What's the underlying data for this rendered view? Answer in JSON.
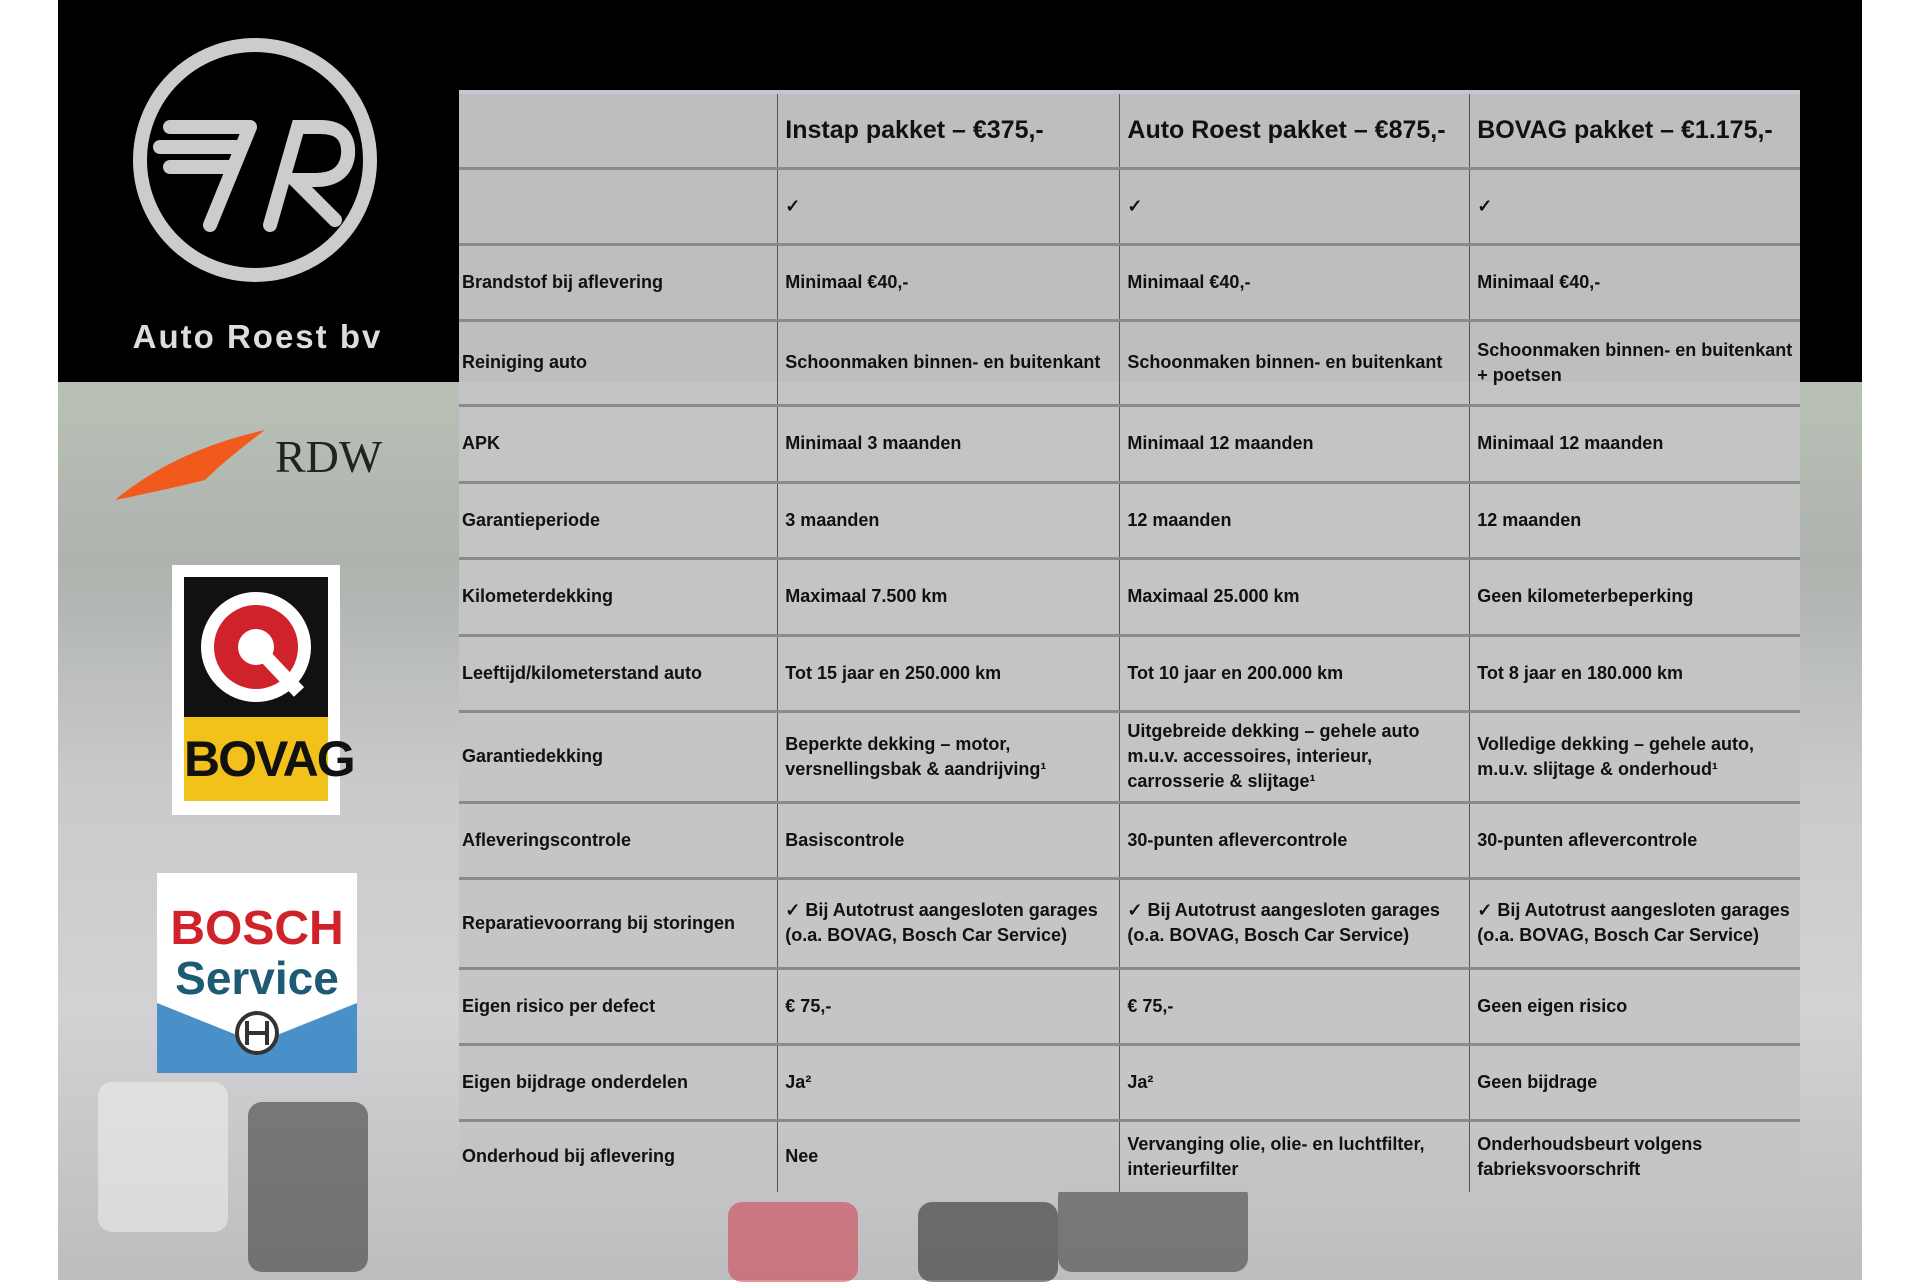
{
  "brand": {
    "name": "Auto Roest bv",
    "logo_letters": "AR"
  },
  "logos": {
    "rdw": "RDW",
    "bovag": "BOVAG",
    "bosch_line1": "BOSCH",
    "bosch_line2": "Service"
  },
  "colors": {
    "top_band": "#000000",
    "table_bg": "#c4c4c4",
    "bovag_yellow": "#f2c21a",
    "bosch_red": "#d0222a",
    "bosch_blue": "#1d5a74",
    "rdw_orange": "#f25a1d"
  },
  "table": {
    "headers": [
      "",
      "Instap pakket – €375,-",
      "Auto Roest pakket – €875,-",
      "BOVAG pakket – €1.175,-"
    ],
    "rows": [
      {
        "h": 76,
        "cells": [
          "",
          "✓",
          "✓",
          "✓"
        ]
      },
      {
        "h": 76,
        "cells": [
          "Brandstof bij aflevering",
          "Minimaal €40,-",
          "Minimaal €40,-",
          "Minimaal €40,-"
        ]
      },
      {
        "h": 85,
        "cells": [
          "Reiniging auto",
          "Schoonmaken binnen- en buitenkant",
          "Schoonmaken binnen- en buitenkant",
          "Schoonmaken binnen- en buitenkant + poetsen"
        ]
      },
      {
        "h": 77,
        "cells": [
          "APK",
          "Minimaal 3 maanden",
          "Minimaal 12 maanden",
          "Minimaal 12 maanden"
        ]
      },
      {
        "h": 76,
        "cells": [
          "Garantieperiode",
          "3 maanden",
          "12 maanden",
          "12 maanden"
        ]
      },
      {
        "h": 77,
        "cells": [
          "Kilometerdekking",
          "Maximaal 7.500 km",
          "Maximaal 25.000 km",
          "Geen kilometerbeperking"
        ]
      },
      {
        "h": 76,
        "cells": [
          "Leeftijd/kilometerstand auto",
          "Tot 15 jaar en 250.000 km",
          "Tot 10 jaar en 200.000 km",
          "Tot 8 jaar en 180.000 km"
        ]
      },
      {
        "h": 91,
        "cells": [
          "Garantiedekking",
          "Beperkte dekking – motor, versnellingsbak & aandrijving¹",
          "Uitgebreide dekking – gehele auto m.u.v. accessoires, interieur, carrosserie & slijtage¹",
          "Volledige dekking – gehele auto, m.u.v. slijtage & onderhoud¹"
        ]
      },
      {
        "h": 76,
        "cells": [
          "Afleveringscontrole",
          "Basiscontrole",
          "30-punten aflevercontrole",
          "30-punten aflevercontrole"
        ]
      },
      {
        "h": 90,
        "cells": [
          "Reparatievoorrang bij storingen",
          "✓ Bij Autotrust aangesloten garages (o.a. BOVAG, Bosch Car Service)",
          "✓ Bij Autotrust aangesloten garages (o.a. BOVAG, Bosch Car Service)",
          "✓ Bij Autotrust aangesloten garages (o.a. BOVAG, Bosch Car Service)"
        ]
      },
      {
        "h": 76,
        "cells": [
          "Eigen risico per defect",
          "€ 75,-",
          "€ 75,-",
          "Geen eigen risico"
        ]
      },
      {
        "h": 76,
        "cells": [
          "Eigen bijdrage onderdelen",
          "Ja²",
          "Ja²",
          "Geen bijdrage"
        ]
      },
      {
        "h": 72,
        "cells": [
          "Onderhoud bij aflevering",
          "Nee",
          "Vervanging olie, olie- en luchtfilter, interieurfilter",
          "Onderhoudsbeurt volgens fabrieksvoorschrift"
        ]
      }
    ]
  }
}
